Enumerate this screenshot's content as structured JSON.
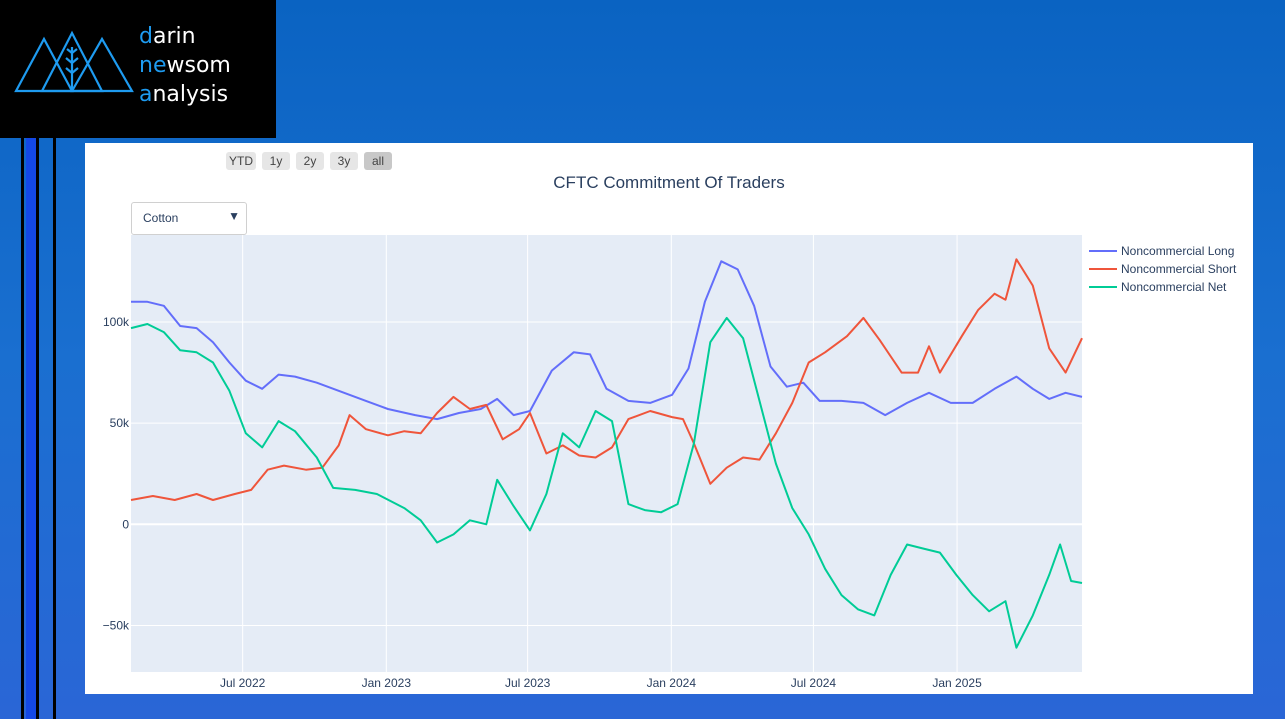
{
  "logo": {
    "lines": [
      {
        "accent": "d",
        "rest": "arin"
      },
      {
        "accent": "n",
        "mid_accent": "e",
        "rest": "wsom"
      },
      {
        "accent": "a",
        "rest": "nalysis"
      }
    ]
  },
  "range_selector": [
    {
      "label": "YTD",
      "active": false
    },
    {
      "label": "1y",
      "active": false
    },
    {
      "label": "2y",
      "active": false
    },
    {
      "label": "3y",
      "active": false
    },
    {
      "label": "all",
      "active": true
    }
  ],
  "dropdown": {
    "selected": "Cotton",
    "arrow": "▼"
  },
  "colors": {
    "long": "#636efa",
    "short": "#ef553b",
    "net": "#00cc96",
    "plot_bg": "#e5ecf6",
    "grid": "#ffffff",
    "accent": "#1e9bf0"
  },
  "chart_data": {
    "type": "line",
    "title": "CFTC Commitment Of Traders",
    "xlabel": "",
    "ylabel": "",
    "x_range": [
      "2022-02-08",
      "2025-06-10"
    ],
    "y_range": [
      -73000,
      143000
    ],
    "y_ticks": [
      {
        "value": 100000,
        "label": "100k"
      },
      {
        "value": 50000,
        "label": "50k"
      },
      {
        "value": 0,
        "label": "0"
      },
      {
        "value": -50000,
        "label": "−50k"
      }
    ],
    "x_ticks": [
      {
        "date": "2022-07-01",
        "label": "Jul 2022"
      },
      {
        "date": "2023-01-01",
        "label": "Jan 2023"
      },
      {
        "date": "2023-07-01",
        "label": "Jul 2023"
      },
      {
        "date": "2024-01-01",
        "label": "Jan 2024"
      },
      {
        "date": "2024-07-01",
        "label": "Jul 2024"
      },
      {
        "date": "2025-01-01",
        "label": "Jan 2025"
      }
    ],
    "legend_position": "top-right",
    "series": [
      {
        "name": "Noncommercial Long",
        "points": [
          [
            "2022-02-08",
            110000
          ],
          [
            "2022-03-01",
            110000
          ],
          [
            "2022-03-22",
            108000
          ],
          [
            "2022-04-12",
            98000
          ],
          [
            "2022-05-03",
            97000
          ],
          [
            "2022-05-24",
            90000
          ],
          [
            "2022-06-14",
            80000
          ],
          [
            "2022-07-05",
            71000
          ],
          [
            "2022-07-26",
            67000
          ],
          [
            "2022-08-16",
            74000
          ],
          [
            "2022-09-06",
            73000
          ],
          [
            "2022-10-04",
            70000
          ],
          [
            "2022-11-01",
            66000
          ],
          [
            "2022-12-06",
            61000
          ],
          [
            "2023-01-03",
            57000
          ],
          [
            "2023-02-07",
            54000
          ],
          [
            "2023-03-07",
            52000
          ],
          [
            "2023-04-04",
            55000
          ],
          [
            "2023-05-02",
            57000
          ],
          [
            "2023-05-23",
            62000
          ],
          [
            "2023-06-13",
            54000
          ],
          [
            "2023-07-04",
            56000
          ],
          [
            "2023-08-01",
            76000
          ],
          [
            "2023-08-29",
            85000
          ],
          [
            "2023-09-19",
            84000
          ],
          [
            "2023-10-10",
            67000
          ],
          [
            "2023-11-07",
            61000
          ],
          [
            "2023-12-05",
            60000
          ],
          [
            "2024-01-02",
            64000
          ],
          [
            "2024-01-23",
            77000
          ],
          [
            "2024-02-13",
            110000
          ],
          [
            "2024-03-05",
            130000
          ],
          [
            "2024-03-26",
            126000
          ],
          [
            "2024-04-16",
            108000
          ],
          [
            "2024-05-07",
            78000
          ],
          [
            "2024-05-28",
            68000
          ],
          [
            "2024-06-18",
            70000
          ],
          [
            "2024-07-09",
            61000
          ],
          [
            "2024-08-06",
            61000
          ],
          [
            "2024-09-03",
            60000
          ],
          [
            "2024-10-01",
            54000
          ],
          [
            "2024-10-29",
            60000
          ],
          [
            "2024-11-26",
            65000
          ],
          [
            "2024-12-24",
            60000
          ],
          [
            "2025-01-21",
            60000
          ],
          [
            "2025-02-18",
            67000
          ],
          [
            "2025-03-18",
            73000
          ],
          [
            "2025-04-08",
            67000
          ],
          [
            "2025-04-29",
            62000
          ],
          [
            "2025-05-20",
            65000
          ],
          [
            "2025-06-10",
            63000
          ]
        ]
      },
      {
        "name": "Noncommercial Short",
        "points": [
          [
            "2022-02-08",
            12000
          ],
          [
            "2022-03-08",
            14000
          ],
          [
            "2022-04-05",
            12000
          ],
          [
            "2022-05-03",
            15000
          ],
          [
            "2022-05-24",
            12000
          ],
          [
            "2022-06-21",
            15000
          ],
          [
            "2022-07-12",
            17000
          ],
          [
            "2022-08-02",
            27000
          ],
          [
            "2022-08-23",
            29000
          ],
          [
            "2022-09-20",
            27000
          ],
          [
            "2022-10-11",
            28000
          ],
          [
            "2022-11-01",
            39000
          ],
          [
            "2022-11-15",
            54000
          ],
          [
            "2022-12-06",
            47000
          ],
          [
            "2023-01-03",
            44000
          ],
          [
            "2023-01-24",
            46000
          ],
          [
            "2023-02-14",
            45000
          ],
          [
            "2023-03-07",
            55000
          ],
          [
            "2023-03-28",
            63000
          ],
          [
            "2023-04-18",
            57000
          ],
          [
            "2023-05-09",
            59000
          ],
          [
            "2023-05-30",
            42000
          ],
          [
            "2023-06-20",
            47000
          ],
          [
            "2023-07-04",
            55000
          ],
          [
            "2023-07-25",
            35000
          ],
          [
            "2023-08-15",
            39000
          ],
          [
            "2023-09-05",
            34000
          ],
          [
            "2023-09-26",
            33000
          ],
          [
            "2023-10-17",
            38000
          ],
          [
            "2023-11-07",
            52000
          ],
          [
            "2023-12-05",
            56000
          ],
          [
            "2024-01-02",
            53000
          ],
          [
            "2024-01-16",
            52000
          ],
          [
            "2024-01-30",
            40000
          ],
          [
            "2024-02-20",
            20000
          ],
          [
            "2024-03-12",
            28000
          ],
          [
            "2024-04-02",
            33000
          ],
          [
            "2024-04-23",
            32000
          ],
          [
            "2024-05-14",
            45000
          ],
          [
            "2024-06-04",
            60000
          ],
          [
            "2024-06-25",
            80000
          ],
          [
            "2024-07-16",
            85000
          ],
          [
            "2024-08-13",
            93000
          ],
          [
            "2024-09-03",
            102000
          ],
          [
            "2024-09-24",
            91000
          ],
          [
            "2024-10-22",
            75000
          ],
          [
            "2024-11-12",
            75000
          ],
          [
            "2024-11-26",
            88000
          ],
          [
            "2024-12-10",
            75000
          ],
          [
            "2025-01-07",
            93000
          ],
          [
            "2025-01-28",
            106000
          ],
          [
            "2025-02-18",
            114000
          ],
          [
            "2025-03-04",
            111000
          ],
          [
            "2025-03-18",
            131000
          ],
          [
            "2025-04-08",
            118000
          ],
          [
            "2025-04-29",
            87000
          ],
          [
            "2025-05-20",
            75000
          ],
          [
            "2025-06-10",
            92000
          ]
        ]
      },
      {
        "name": "Noncommercial Net",
        "points": [
          [
            "2022-02-08",
            97000
          ],
          [
            "2022-03-01",
            99000
          ],
          [
            "2022-03-22",
            95000
          ],
          [
            "2022-04-12",
            86000
          ],
          [
            "2022-05-03",
            85000
          ],
          [
            "2022-05-24",
            80000
          ],
          [
            "2022-06-14",
            66000
          ],
          [
            "2022-07-05",
            45000
          ],
          [
            "2022-07-26",
            38000
          ],
          [
            "2022-08-16",
            51000
          ],
          [
            "2022-09-06",
            46000
          ],
          [
            "2022-10-04",
            33000
          ],
          [
            "2022-10-25",
            18000
          ],
          [
            "2022-11-22",
            17000
          ],
          [
            "2022-12-20",
            15000
          ],
          [
            "2023-01-24",
            8000
          ],
          [
            "2023-02-14",
            2000
          ],
          [
            "2023-03-07",
            -9000
          ],
          [
            "2023-03-28",
            -5000
          ],
          [
            "2023-04-18",
            2000
          ],
          [
            "2023-05-09",
            0
          ],
          [
            "2023-05-23",
            22000
          ],
          [
            "2023-06-13",
            9000
          ],
          [
            "2023-07-04",
            -3000
          ],
          [
            "2023-07-25",
            15000
          ],
          [
            "2023-08-15",
            45000
          ],
          [
            "2023-09-05",
            38000
          ],
          [
            "2023-09-26",
            56000
          ],
          [
            "2023-10-17",
            51000
          ],
          [
            "2023-11-07",
            10000
          ],
          [
            "2023-11-28",
            7000
          ],
          [
            "2023-12-19",
            6000
          ],
          [
            "2024-01-09",
            10000
          ],
          [
            "2024-01-30",
            40000
          ],
          [
            "2024-02-20",
            90000
          ],
          [
            "2024-03-12",
            102000
          ],
          [
            "2024-04-02",
            92000
          ],
          [
            "2024-04-23",
            61000
          ],
          [
            "2024-05-14",
            30000
          ],
          [
            "2024-06-04",
            8000
          ],
          [
            "2024-06-25",
            -5000
          ],
          [
            "2024-07-16",
            -22000
          ],
          [
            "2024-08-06",
            -35000
          ],
          [
            "2024-08-27",
            -42000
          ],
          [
            "2024-09-17",
            -45000
          ],
          [
            "2024-10-08",
            -25000
          ],
          [
            "2024-10-29",
            -10000
          ],
          [
            "2024-11-19",
            -12000
          ],
          [
            "2024-12-10",
            -14000
          ],
          [
            "2024-12-31",
            -25000
          ],
          [
            "2025-01-21",
            -35000
          ],
          [
            "2025-02-11",
            -43000
          ],
          [
            "2025-03-04",
            -38000
          ],
          [
            "2025-03-18",
            -61000
          ],
          [
            "2025-04-08",
            -45000
          ],
          [
            "2025-04-29",
            -25000
          ],
          [
            "2025-05-13",
            -10000
          ],
          [
            "2025-05-27",
            -28000
          ],
          [
            "2025-06-10",
            -29000
          ]
        ]
      }
    ]
  }
}
